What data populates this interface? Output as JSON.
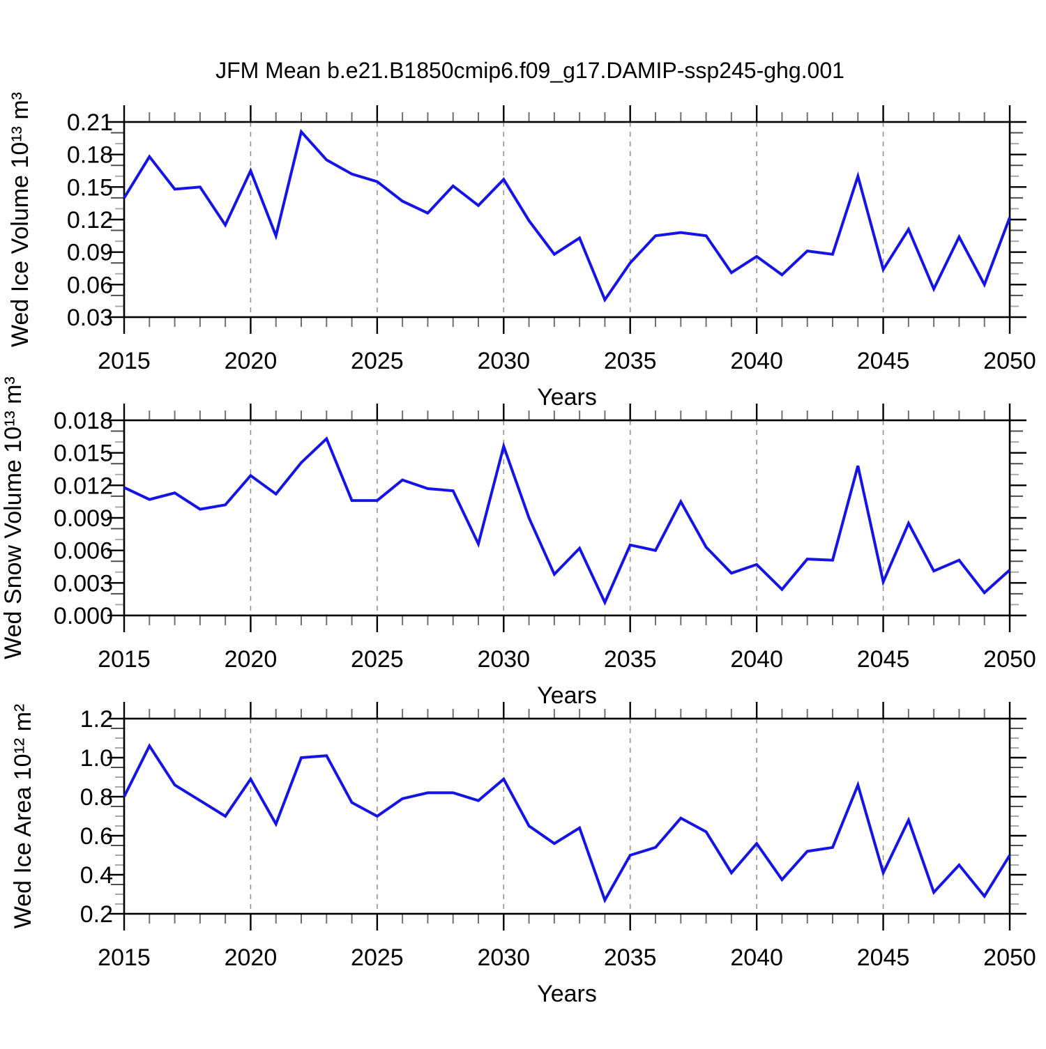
{
  "figure_title": "JFM Mean b.e21.B1850cmip6.f09_g17.DAMIP-ssp245-ghg.001",
  "colors": {
    "line": "#1414E6",
    "grid": "#919191",
    "axis": "#000000",
    "minor_tick_dark": "#4d4d4d",
    "minor_tick_light": "#a8a8a8",
    "x_minor_tick": "#6f6f6f"
  },
  "years": [
    2015,
    2016,
    2017,
    2018,
    2019,
    2020,
    2021,
    2022,
    2023,
    2024,
    2025,
    2026,
    2027,
    2028,
    2029,
    2030,
    2031,
    2032,
    2033,
    2034,
    2035,
    2036,
    2037,
    2038,
    2039,
    2040,
    2041,
    2042,
    2043,
    2044,
    2045,
    2046,
    2047,
    2048,
    2049,
    2050
  ],
  "chart_data": [
    {
      "type": "line",
      "title": "JFM Mean b.e21.B1850cmip6.f09_g17.DAMIP-ssp245-ghg.001",
      "xlabel": "Years",
      "ylabel": "Wed Ice Volume 10¹³ m³",
      "xlim": [
        2015,
        2050
      ],
      "x_major_step": 5,
      "x_minor_step": 1,
      "x_tick_labels": [
        "2015",
        "2020",
        "2025",
        "2030",
        "2035",
        "2040",
        "2045",
        "2050"
      ],
      "ylim": [
        0.03,
        0.21
      ],
      "y_major_step": 0.03,
      "y_minor_step": 0.01,
      "y_decimals": 2,
      "y_tick_labels": [
        "0.03",
        "0.06",
        "0.09",
        "0.12",
        "0.15",
        "0.18",
        "0.21"
      ],
      "gridlines_x": [
        2020,
        2025,
        2030,
        2035,
        2040,
        2045
      ],
      "grid_style": "dashed-vertical",
      "legend": "none",
      "values": [
        0.14,
        0.178,
        0.148,
        0.15,
        0.115,
        0.165,
        0.105,
        0.201,
        0.175,
        0.162,
        0.155,
        0.137,
        0.126,
        0.151,
        0.133,
        0.157,
        0.119,
        0.088,
        0.103,
        0.046,
        0.08,
        0.105,
        0.108,
        0.105,
        0.071,
        0.086,
        0.069,
        0.091,
        0.088,
        0.16,
        0.074,
        0.111,
        0.056,
        0.104,
        0.06,
        0.122
      ]
    },
    {
      "type": "line",
      "title": "",
      "xlabel": "Years",
      "ylabel": "Wed Snow Volume 10¹³ m³",
      "xlim": [
        2015,
        2050
      ],
      "x_major_step": 5,
      "x_minor_step": 1,
      "x_tick_labels": [
        "2015",
        "2020",
        "2025",
        "2030",
        "2035",
        "2040",
        "2045",
        "2050"
      ],
      "ylim": [
        0.0,
        0.018
      ],
      "y_major_step": 0.003,
      "y_minor_step": 0.001,
      "y_decimals": 3,
      "y_tick_labels": [
        "0.000",
        "0.003",
        "0.006",
        "0.009",
        "0.012",
        "0.015",
        "0.018"
      ],
      "gridlines_x": [
        2020,
        2025,
        2030,
        2035,
        2040,
        2045
      ],
      "grid_style": "dashed-vertical",
      "legend": "none",
      "values": [
        0.0118,
        0.0107,
        0.0113,
        0.0098,
        0.0102,
        0.0129,
        0.0112,
        0.0141,
        0.0163,
        0.0106,
        0.0106,
        0.0125,
        0.0117,
        0.0115,
        0.0066,
        0.0156,
        0.009,
        0.0038,
        0.0062,
        0.0012,
        0.0065,
        0.006,
        0.0105,
        0.0063,
        0.0039,
        0.0047,
        0.0024,
        0.0052,
        0.0051,
        0.0138,
        0.0031,
        0.0085,
        0.0041,
        0.0051,
        0.0021,
        0.0042
      ]
    },
    {
      "type": "line",
      "title": "",
      "xlabel": "Years",
      "ylabel": "Wed Ice Area 10¹² m²",
      "xlim": [
        2015,
        2050
      ],
      "x_major_step": 5,
      "x_minor_step": 1,
      "x_tick_labels": [
        "2015",
        "2020",
        "2025",
        "2030",
        "2035",
        "2040",
        "2045",
        "2050"
      ],
      "ylim": [
        0.2,
        1.2
      ],
      "y_major_step": 0.2,
      "y_minor_step": 0.05,
      "y_decimals": 1,
      "y_tick_labels": [
        "0.2",
        "0.4",
        "0.6",
        "0.8",
        "1.0",
        "1.2"
      ],
      "gridlines_x": [
        2020,
        2025,
        2030,
        2035,
        2040,
        2045
      ],
      "grid_style": "dashed-vertical",
      "legend": "none",
      "values": [
        0.8,
        1.06,
        0.86,
        0.78,
        0.7,
        0.89,
        0.66,
        1.0,
        1.01,
        0.77,
        0.7,
        0.79,
        0.82,
        0.82,
        0.78,
        0.89,
        0.65,
        0.56,
        0.64,
        0.27,
        0.5,
        0.54,
        0.69,
        0.62,
        0.41,
        0.56,
        0.375,
        0.52,
        0.54,
        0.86,
        0.41,
        0.68,
        0.31,
        0.45,
        0.29,
        0.5
      ]
    }
  ]
}
